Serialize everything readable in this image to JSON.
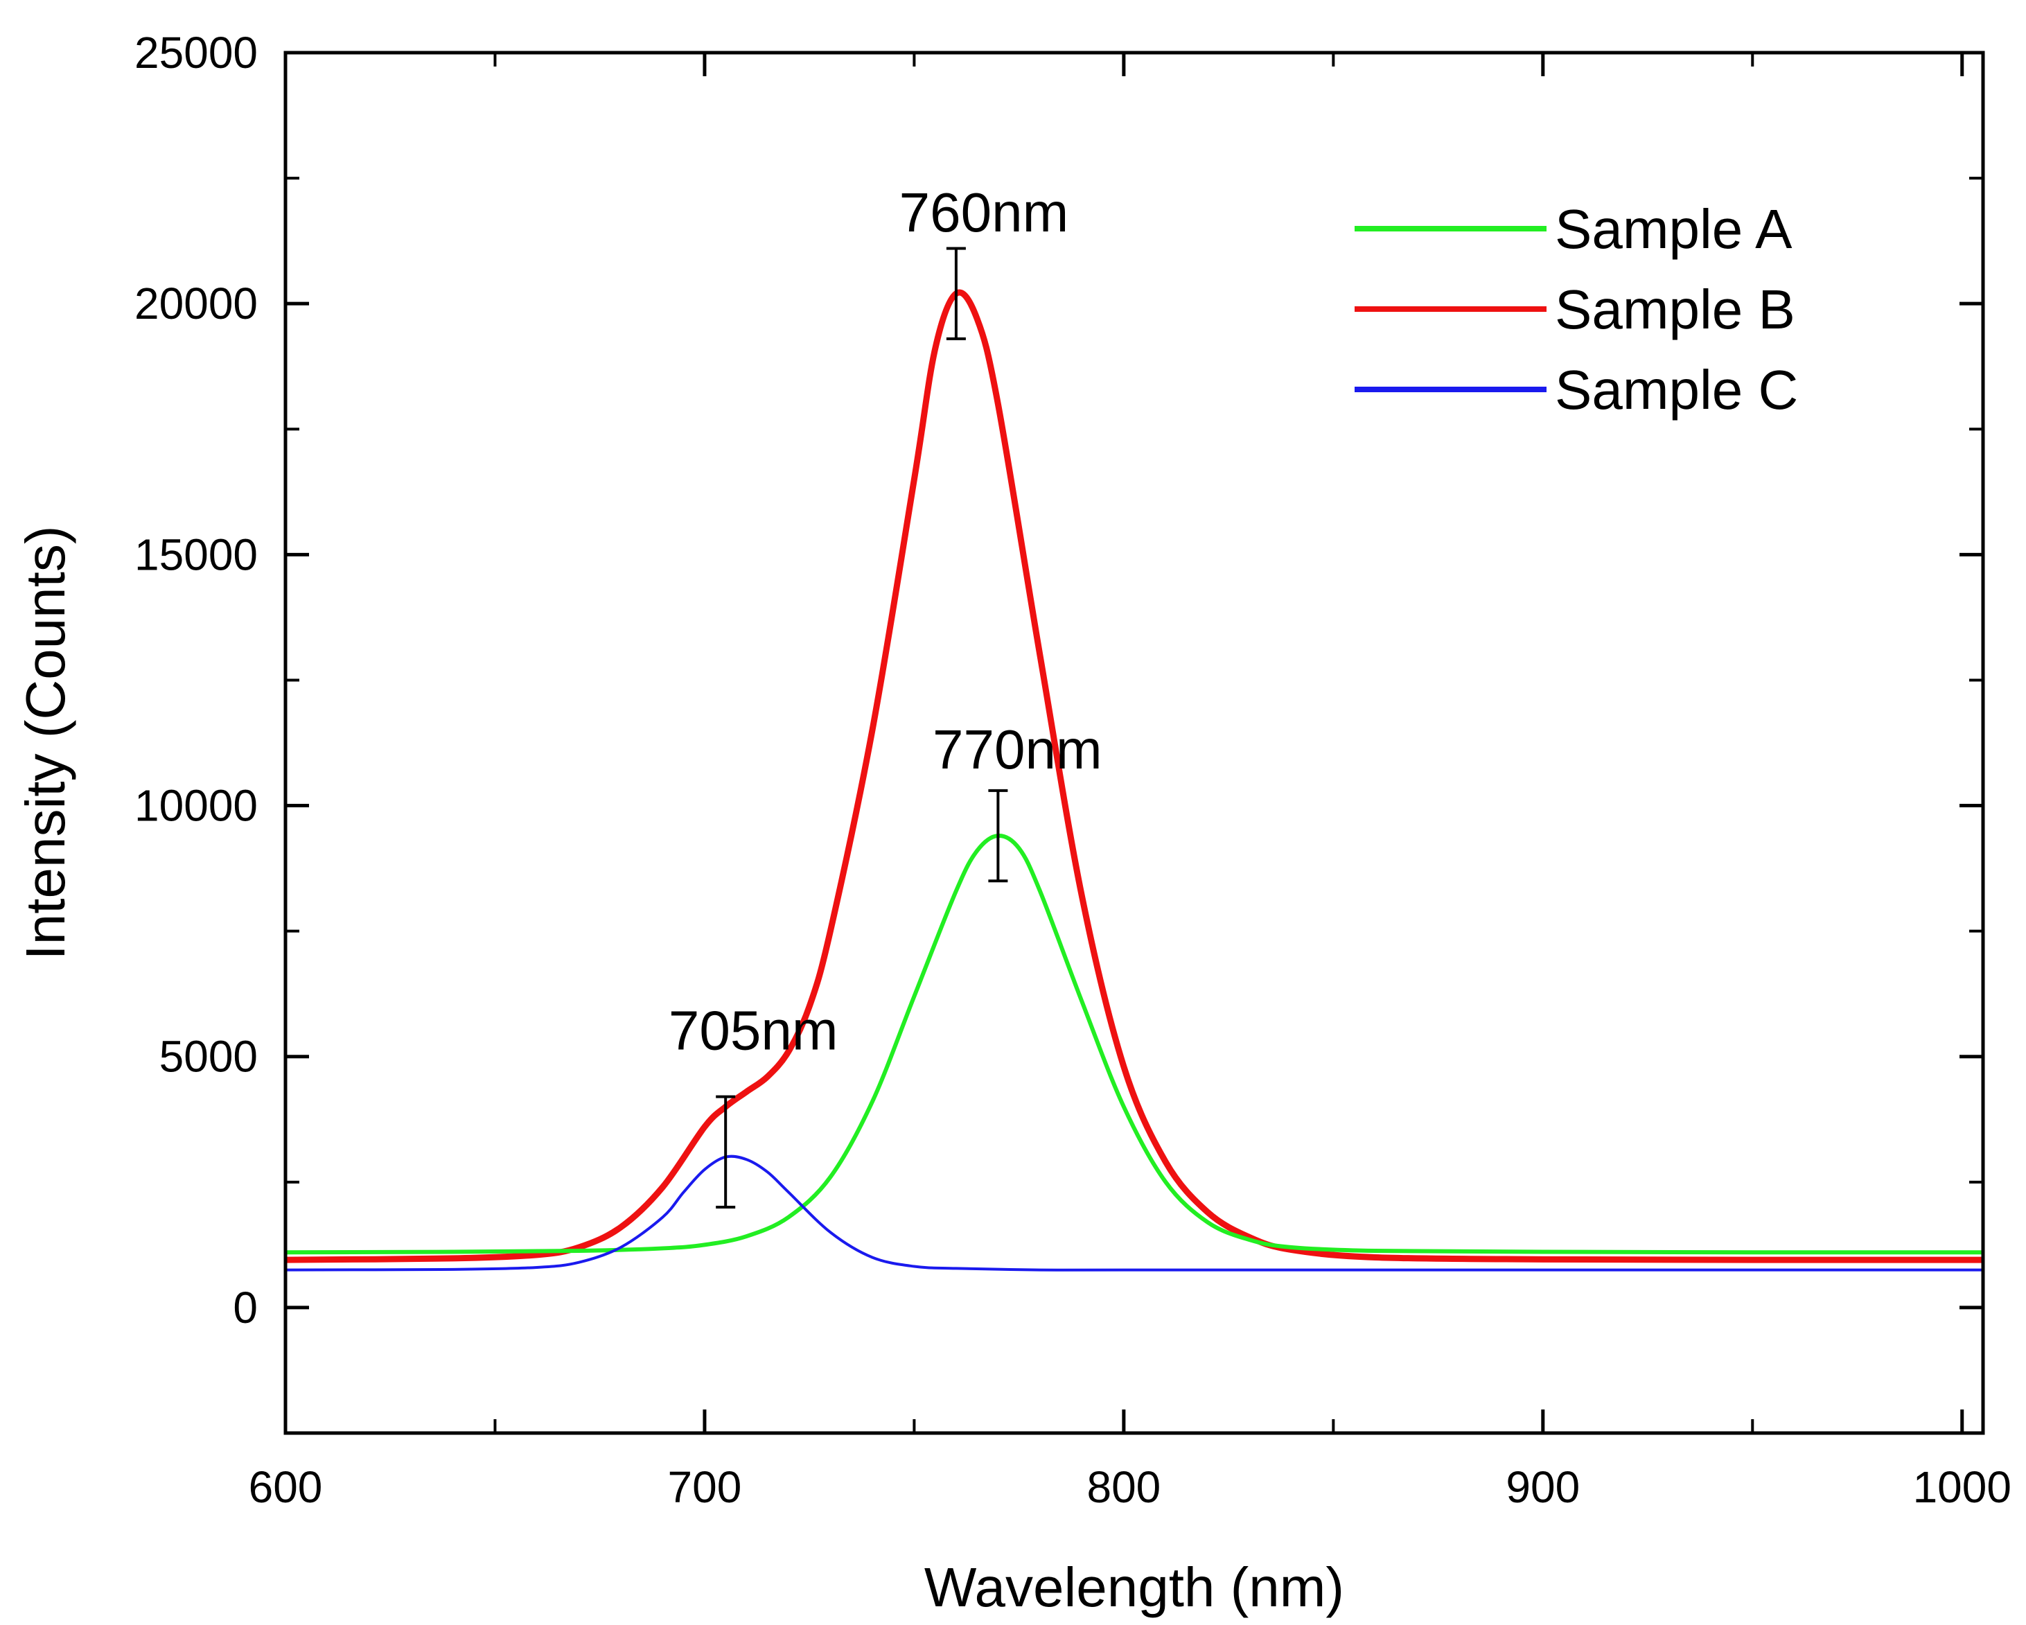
{
  "chart_data": {
    "type": "line",
    "xlabel": "Wavelength (nm)",
    "ylabel": "Intensity (Counts)",
    "xlim": [
      600,
      1005
    ],
    "ylim": [
      -2500,
      25000
    ],
    "xticks": [
      600,
      700,
      800,
      900,
      1000
    ],
    "yticks": [
      0,
      5000,
      10000,
      15000,
      20000,
      25000
    ],
    "legend_position": "top-right",
    "series": [
      {
        "name": "Sample A",
        "color": "#22ee22",
        "x": [
          600,
          640,
          670,
          690,
          700,
          710,
          720,
          730,
          740,
          750,
          760,
          765,
          770,
          775,
          780,
          790,
          800,
          810,
          820,
          830,
          840,
          860,
          900,
          950,
          1005
        ],
        "y": [
          1100,
          1110,
          1130,
          1180,
          1250,
          1420,
          1800,
          2600,
          4100,
          6200,
          8300,
          9100,
          9400,
          9150,
          8300,
          6100,
          4000,
          2500,
          1700,
          1350,
          1200,
          1130,
          1110,
          1100,
          1100
        ]
      },
      {
        "name": "Sample B",
        "color": "#ee1111",
        "x": [
          600,
          640,
          660,
          670,
          680,
          690,
          700,
          705,
          710,
          715,
          720,
          725,
          730,
          740,
          750,
          755,
          760,
          765,
          770,
          780,
          790,
          800,
          810,
          820,
          830,
          840,
          860,
          900,
          950,
          1005
        ],
        "y": [
          950,
          980,
          1050,
          1200,
          1600,
          2400,
          3600,
          4000,
          4300,
          4600,
          5100,
          6000,
          7500,
          11500,
          16500,
          19100,
          20200,
          19700,
          18000,
          13000,
          8200,
          4800,
          2900,
          1900,
          1400,
          1150,
          1000,
          960,
          950,
          950
        ]
      },
      {
        "name": "Sample C",
        "color": "#1a1aee",
        "x": [
          600,
          640,
          660,
          670,
          680,
          690,
          695,
          700,
          705,
          710,
          715,
          720,
          730,
          740,
          750,
          760,
          780,
          800,
          850,
          900,
          950,
          1005
        ],
        "y": [
          750,
          760,
          800,
          900,
          1200,
          1800,
          2300,
          2750,
          3000,
          2950,
          2700,
          2300,
          1500,
          1000,
          820,
          780,
          750,
          750,
          750,
          750,
          750,
          750
        ]
      }
    ],
    "error_bars": [
      {
        "x": 705,
        "y": 3000,
        "low": 2000,
        "high": 4200
      },
      {
        "x": 760,
        "y": 20200,
        "low": 19300,
        "high": 21100
      },
      {
        "x": 770,
        "y": 9400,
        "low": 8500,
        "high": 10300
      }
    ],
    "annotations": [
      {
        "text": "705nm",
        "x": 705,
        "y": 5000
      },
      {
        "text": "760nm",
        "x": 760,
        "y": 21300
      },
      {
        "text": "770nm",
        "x": 768,
        "y": 10600
      }
    ]
  }
}
